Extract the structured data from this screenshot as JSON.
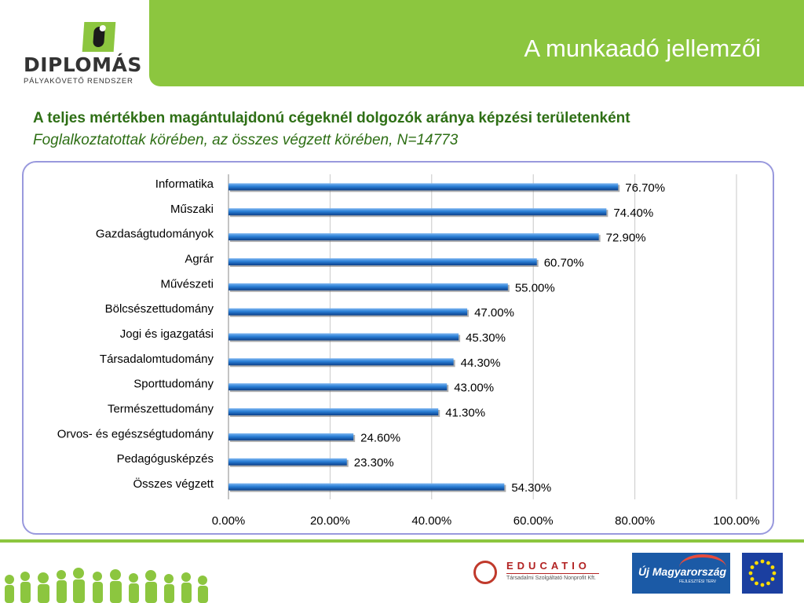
{
  "header": {
    "logo_word": "DIPLOMÁS",
    "logo_sub": "PÁLYAKÖVETŐ  RENDSZER",
    "title": "A munkaadó jellemzői"
  },
  "subtitle": {
    "line1": "A teljes mértékben magántulajdonú cégeknél dolgozók aránya  képzési területenként",
    "line2": "Foglalkoztatottak körében, az összes végzett körében, N=14773"
  },
  "chart_data": {
    "type": "bar",
    "orientation": "horizontal",
    "categories": [
      "Informatika",
      "Műszaki",
      "Gazdaságtudományok",
      "Agrár",
      "Művészeti",
      "Bölcsészettudomány",
      "Jogi és igazgatási ",
      "Társadalomtudomány",
      "Sporttudomány",
      "Természettudomány",
      "Orvos- és egészségtudomány",
      "Pedagógusképzés",
      "Összes végzett"
    ],
    "values": [
      76.7,
      74.4,
      72.9,
      60.7,
      55.0,
      47.0,
      45.3,
      44.3,
      43.0,
      41.3,
      24.6,
      23.3,
      54.3
    ],
    "value_labels": [
      "76.70%",
      "74.40%",
      "72.90%",
      "60.70%",
      "55.00%",
      "47.00%",
      "45.30%",
      "44.30%",
      "43.00%",
      "41.30%",
      "24.60%",
      "23.30%",
      "54.30%"
    ],
    "xlim": [
      0,
      100
    ],
    "xticks": [
      0,
      20,
      40,
      60,
      80,
      100
    ],
    "xtick_labels": [
      "0.00%",
      "20.00%",
      "40.00%",
      "60.00%",
      "80.00%",
      "100.00%"
    ],
    "grid": true,
    "bar_color": "#1f6fc5"
  },
  "footer": {
    "educatio": "EDUCATIO",
    "educatio_sub": "Társadalmi Szolgáltató Nonprofit Kft.",
    "umft": "Új Magyarország",
    "umft_sub": "FEJLESZTÉSI TERV"
  },
  "colors": {
    "green": "#8cc63f",
    "dark_green": "#2e6f15",
    "frame": "#9999dd"
  }
}
